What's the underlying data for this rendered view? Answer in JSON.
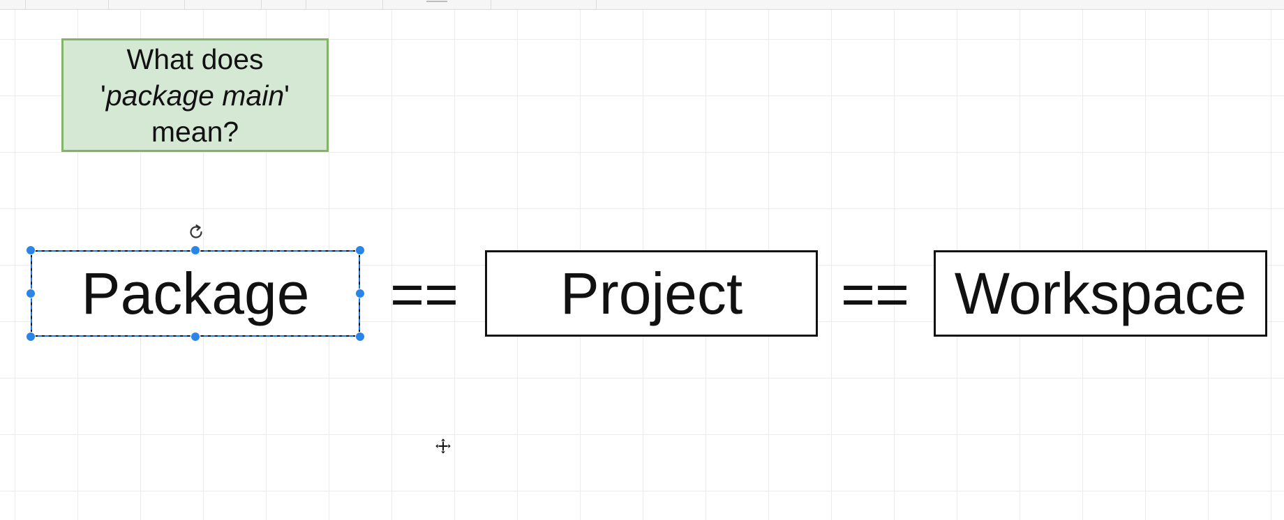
{
  "canvas": {
    "grid": true,
    "grid_color": "#ececec"
  },
  "note": {
    "line1": "What does",
    "quote_open": "'",
    "emphasis": "package main",
    "quote_close": "'",
    "line3": "mean?",
    "fill_color": "#d5e8d4",
    "stroke_color": "#82b366"
  },
  "terms": {
    "package": "Package",
    "project": "Project",
    "workspace": "Workspace"
  },
  "operators": {
    "eq1": "==",
    "eq2": "=="
  },
  "selection": {
    "selected_shape": "Package",
    "accent_color": "#2b84e7"
  },
  "icons": {
    "rotate": "rotate-icon",
    "move": "move-cursor-icon"
  }
}
